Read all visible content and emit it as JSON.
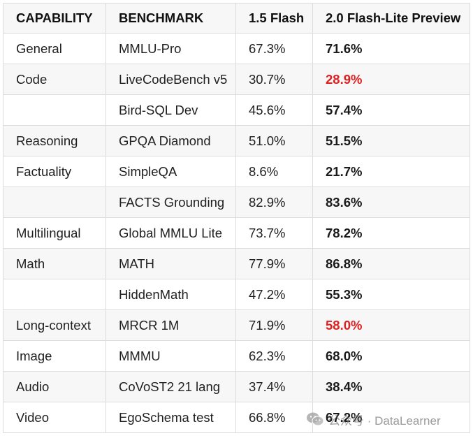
{
  "table": {
    "headers": [
      "CAPABILITY",
      "BENCHMARK",
      "1.5 Flash",
      "2.0 Flash-Lite Preview"
    ],
    "rows": [
      {
        "capability": "General",
        "benchmark": "MMLU-Pro",
        "flash15": "67.3%",
        "flashlite20": "71.6%",
        "worse": false
      },
      {
        "capability": "Code",
        "benchmark": "LiveCodeBench v5",
        "flash15": "30.7%",
        "flashlite20": "28.9%",
        "worse": true
      },
      {
        "capability": "",
        "benchmark": "Bird-SQL Dev",
        "flash15": "45.6%",
        "flashlite20": "57.4%",
        "worse": false
      },
      {
        "capability": "Reasoning",
        "benchmark": "GPQA Diamond",
        "flash15": "51.0%",
        "flashlite20": "51.5%",
        "worse": false
      },
      {
        "capability": "Factuality",
        "benchmark": "SimpleQA",
        "flash15": "8.6%",
        "flashlite20": "21.7%",
        "worse": false
      },
      {
        "capability": "",
        "benchmark": "FACTS Grounding",
        "flash15": "82.9%",
        "flashlite20": "83.6%",
        "worse": false
      },
      {
        "capability": "Multilingual",
        "benchmark": "Global MMLU Lite",
        "flash15": "73.7%",
        "flashlite20": "78.2%",
        "worse": false
      },
      {
        "capability": "Math",
        "benchmark": "MATH",
        "flash15": "77.9%",
        "flashlite20": "86.8%",
        "worse": false
      },
      {
        "capability": "",
        "benchmark": "HiddenMath",
        "flash15": "47.2%",
        "flashlite20": "55.3%",
        "worse": false
      },
      {
        "capability": "Long-context",
        "benchmark": "MRCR 1M",
        "flash15": "71.9%",
        "flashlite20": "58.0%",
        "worse": true
      },
      {
        "capability": "Image",
        "benchmark": "MMMU",
        "flash15": "62.3%",
        "flashlite20": "68.0%",
        "worse": false
      },
      {
        "capability": "Audio",
        "benchmark": "CoVoST2 21 lang",
        "flash15": "37.4%",
        "flashlite20": "38.4%",
        "worse": false
      },
      {
        "capability": "Video",
        "benchmark": "EgoSchema test",
        "flash15": "66.8%",
        "flashlite20": "67.2%",
        "worse": false
      }
    ]
  },
  "colors": {
    "worse_score": "#e02020",
    "stripe": "#f7f7f7",
    "border": "#dcdcdc"
  },
  "watermark": {
    "icon": "wechat-icon",
    "text": "公众号 · DataLearner"
  }
}
